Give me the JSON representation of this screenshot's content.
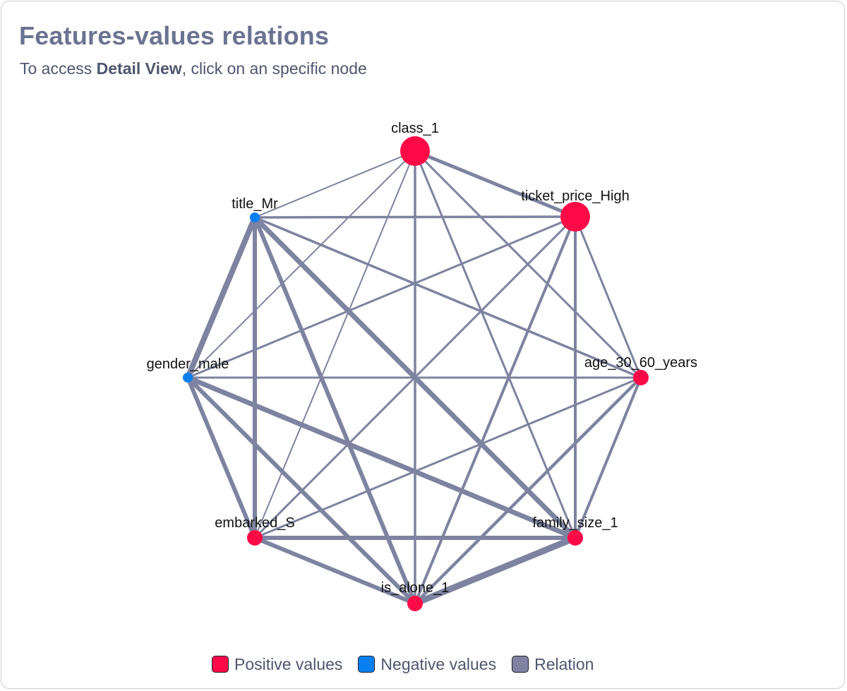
{
  "header": {
    "title": "Features-values relations",
    "subtitle_pre": "To access ",
    "subtitle_bold": "Detail View",
    "subtitle_post": ", click on an specific node"
  },
  "colors": {
    "positive": "#ff0a47",
    "negative": "#0a7ff0",
    "relation": "#7d83a0"
  },
  "graph": {
    "nodes": [
      {
        "id": "class_1",
        "label": "class_1",
        "type": "positive",
        "size": "large"
      },
      {
        "id": "ticket_price_High",
        "label": "ticket_price_High",
        "type": "positive",
        "size": "large"
      },
      {
        "id": "age_30_60_years",
        "label": "age_30_60_years",
        "type": "positive",
        "size": "medium"
      },
      {
        "id": "family_size_1",
        "label": "family_size_1",
        "type": "positive",
        "size": "medium"
      },
      {
        "id": "is_alone_1",
        "label": "is_alone_1",
        "type": "positive",
        "size": "medium"
      },
      {
        "id": "embarked_S",
        "label": "embarked_S",
        "type": "positive",
        "size": "medium"
      },
      {
        "id": "gender_male",
        "label": "gender_male",
        "type": "negative",
        "size": "small"
      },
      {
        "id": "title_Mr",
        "label": "title_Mr",
        "type": "negative",
        "size": "small"
      }
    ],
    "edges": [
      {
        "source": "class_1",
        "target": "ticket_price_High",
        "strength": 5
      },
      {
        "source": "class_1",
        "target": "age_30_60_years",
        "strength": 3
      },
      {
        "source": "class_1",
        "target": "family_size_1",
        "strength": 3
      },
      {
        "source": "class_1",
        "target": "is_alone_1",
        "strength": 3.5
      },
      {
        "source": "class_1",
        "target": "embarked_S",
        "strength": 2
      },
      {
        "source": "class_1",
        "target": "gender_male",
        "strength": 2
      },
      {
        "source": "class_1",
        "target": "title_Mr",
        "strength": 2
      },
      {
        "source": "ticket_price_High",
        "target": "age_30_60_years",
        "strength": 3
      },
      {
        "source": "ticket_price_High",
        "target": "family_size_1",
        "strength": 4
      },
      {
        "source": "ticket_price_High",
        "target": "is_alone_1",
        "strength": 4
      },
      {
        "source": "ticket_price_High",
        "target": "embarked_S",
        "strength": 3
      },
      {
        "source": "ticket_price_High",
        "target": "gender_male",
        "strength": 3
      },
      {
        "source": "ticket_price_High",
        "target": "title_Mr",
        "strength": 3.5
      },
      {
        "source": "age_30_60_years",
        "target": "family_size_1",
        "strength": 4
      },
      {
        "source": "age_30_60_years",
        "target": "is_alone_1",
        "strength": 4.5
      },
      {
        "source": "age_30_60_years",
        "target": "embarked_S",
        "strength": 3
      },
      {
        "source": "age_30_60_years",
        "target": "gender_male",
        "strength": 3
      },
      {
        "source": "age_30_60_years",
        "target": "title_Mr",
        "strength": 3.5
      },
      {
        "source": "family_size_1",
        "target": "is_alone_1",
        "strength": 9
      },
      {
        "source": "family_size_1",
        "target": "embarked_S",
        "strength": 6
      },
      {
        "source": "family_size_1",
        "target": "gender_male",
        "strength": 7
      },
      {
        "source": "family_size_1",
        "target": "title_Mr",
        "strength": 7
      },
      {
        "source": "is_alone_1",
        "target": "embarked_S",
        "strength": 6
      },
      {
        "source": "is_alone_1",
        "target": "gender_male",
        "strength": 6
      },
      {
        "source": "is_alone_1",
        "target": "title_Mr",
        "strength": 6
      },
      {
        "source": "embarked_S",
        "target": "gender_male",
        "strength": 6
      },
      {
        "source": "embarked_S",
        "target": "title_Mr",
        "strength": 6
      },
      {
        "source": "gender_male",
        "target": "title_Mr",
        "strength": 8
      }
    ]
  },
  "legend": {
    "positive_label": "Positive values",
    "negative_label": "Negative values",
    "relation_label": "Relation"
  }
}
